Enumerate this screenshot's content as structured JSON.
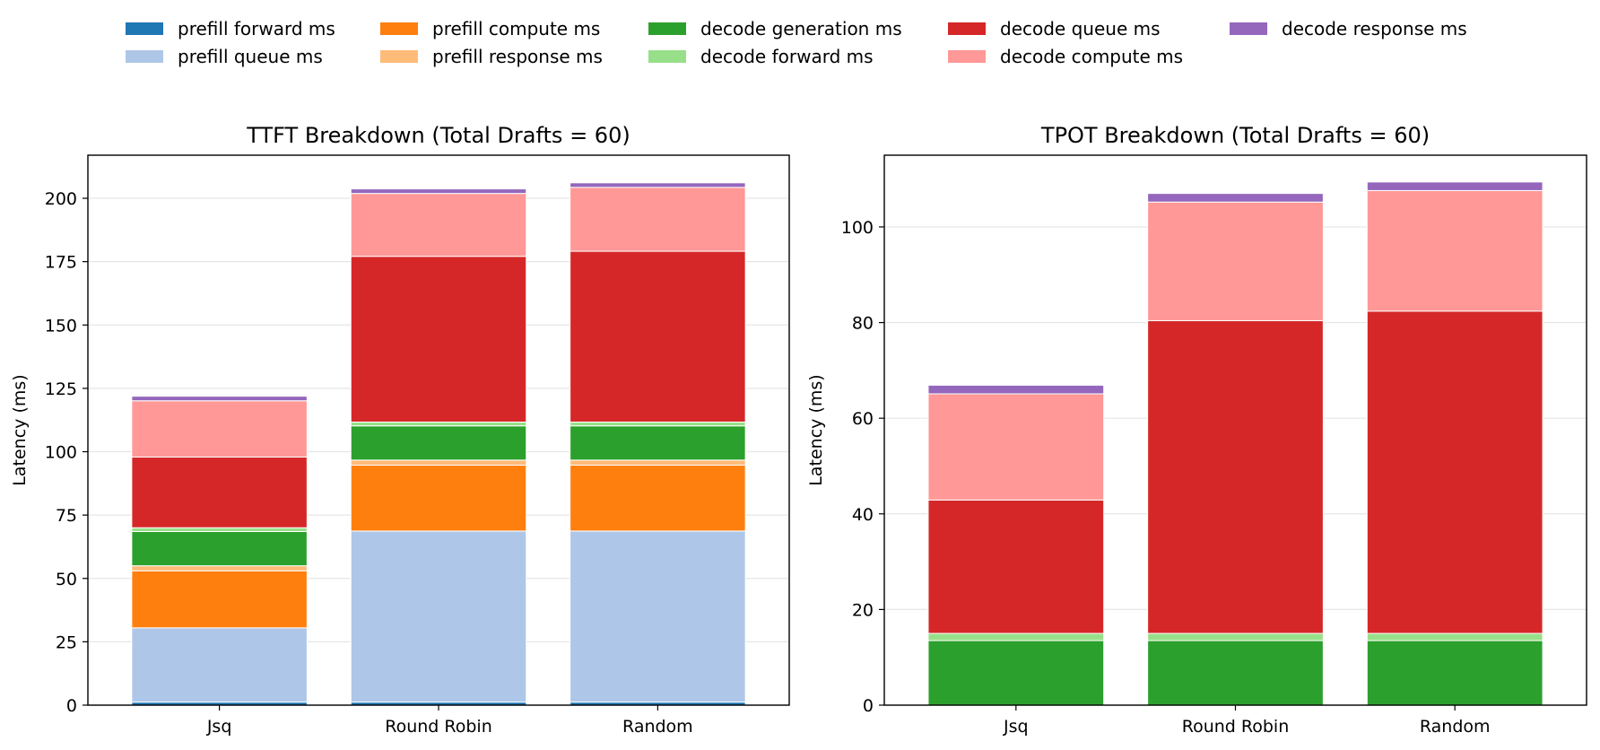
{
  "legend": [
    {
      "name": "prefill forward ms",
      "color": "#1f77b4"
    },
    {
      "name": "prefill queue ms",
      "color": "#aec7e8"
    },
    {
      "name": "prefill compute ms",
      "color": "#ff7f0e"
    },
    {
      "name": "prefill response ms",
      "color": "#ffbb78"
    },
    {
      "name": "decode generation ms",
      "color": "#2ca02c"
    },
    {
      "name": "decode forward ms",
      "color": "#98df8a"
    },
    {
      "name": "decode queue ms",
      "color": "#d62728"
    },
    {
      "name": "decode compute ms",
      "color": "#ff9896"
    },
    {
      "name": "decode response ms",
      "color": "#9467bd"
    }
  ],
  "chart_data": [
    {
      "type": "bar",
      "stacked": true,
      "title": "TTFT Breakdown (Total Drafts = 60)",
      "ylabel": "Latency (ms)",
      "xlabel": "",
      "ylim": [
        0,
        217
      ],
      "yticks": [
        0,
        25,
        50,
        75,
        100,
        125,
        150,
        175,
        200
      ],
      "categories": [
        "Jsq",
        "Round Robin",
        "Random"
      ],
      "grid": "y",
      "series": [
        {
          "name": "prefill forward ms",
          "values": [
            1.2,
            1.2,
            1.2
          ]
        },
        {
          "name": "prefill queue ms",
          "values": [
            29.3,
            67.5,
            67.5
          ]
        },
        {
          "name": "prefill compute ms",
          "values": [
            22.5,
            26.0,
            26.0
          ]
        },
        {
          "name": "prefill response ms",
          "values": [
            2.0,
            2.0,
            2.0
          ]
        },
        {
          "name": "decode generation ms",
          "values": [
            13.5,
            13.5,
            13.5
          ]
        },
        {
          "name": "decode forward ms",
          "values": [
            1.5,
            1.5,
            1.5
          ]
        },
        {
          "name": "decode queue ms",
          "values": [
            27.9,
            65.4,
            67.4
          ]
        },
        {
          "name": "decode compute ms",
          "values": [
            22.2,
            24.8,
            25.2
          ]
        },
        {
          "name": "decode response ms",
          "values": [
            1.8,
            1.8,
            1.8
          ]
        }
      ]
    },
    {
      "type": "bar",
      "stacked": true,
      "title": "TPOT Breakdown (Total Drafts = 60)",
      "ylabel": "Latency (ms)",
      "xlabel": "",
      "ylim": [
        0,
        115
      ],
      "yticks": [
        0,
        20,
        40,
        60,
        80,
        100
      ],
      "categories": [
        "Jsq",
        "Round Robin",
        "Random"
      ],
      "grid": "y",
      "series": [
        {
          "name": "decode generation ms",
          "values": [
            13.5,
            13.5,
            13.5
          ]
        },
        {
          "name": "decode forward ms",
          "values": [
            1.5,
            1.5,
            1.5
          ]
        },
        {
          "name": "decode queue ms",
          "values": [
            27.9,
            65.4,
            67.4
          ]
        },
        {
          "name": "decode compute ms",
          "values": [
            22.2,
            24.8,
            25.2
          ]
        },
        {
          "name": "decode response ms",
          "values": [
            1.8,
            1.8,
            1.8
          ]
        }
      ]
    }
  ]
}
